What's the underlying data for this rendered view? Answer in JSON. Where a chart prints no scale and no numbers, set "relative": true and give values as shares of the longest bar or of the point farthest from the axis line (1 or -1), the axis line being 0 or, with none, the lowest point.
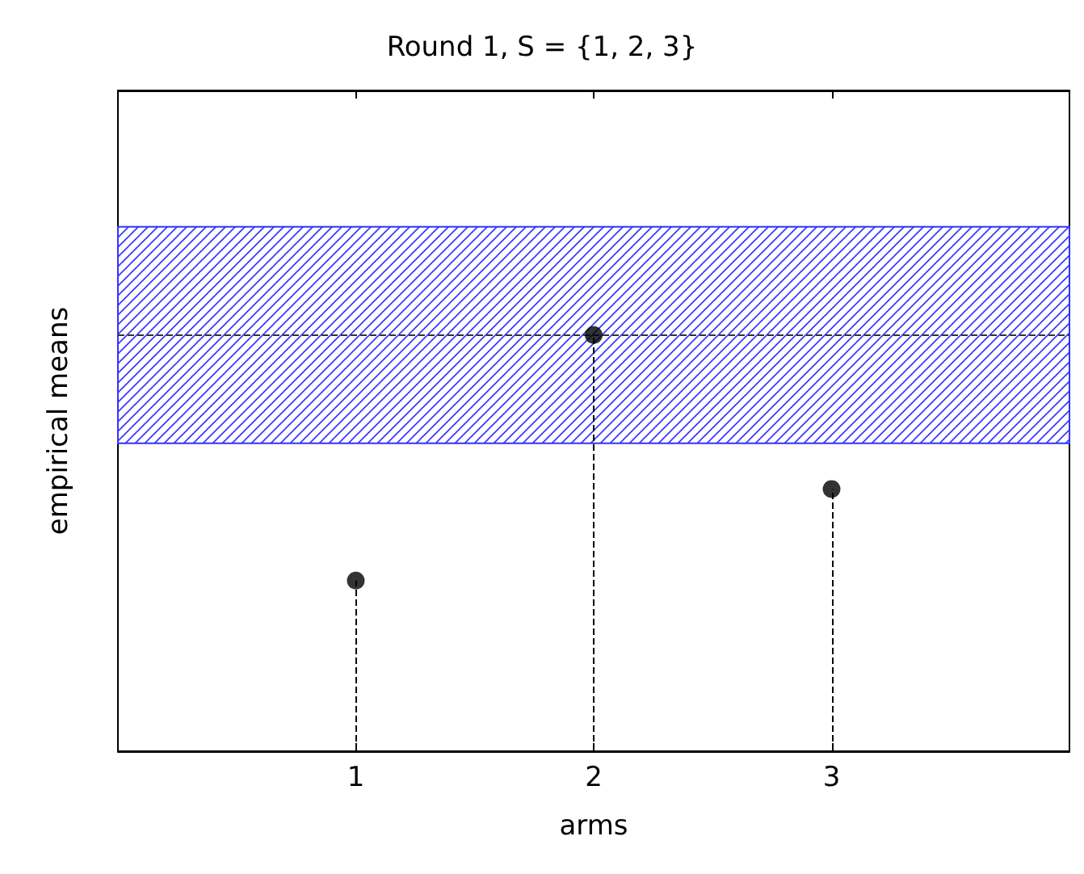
{
  "chart_data": {
    "type": "lollipop",
    "title": "Round 1, S = {1, 2, 3}",
    "xlabel": "arms",
    "ylabel": "empirical means",
    "x": [
      1,
      2,
      3
    ],
    "xlim": [
      0,
      4
    ],
    "xticks": [
      1,
      2,
      3
    ],
    "series": [
      {
        "color": "#000000",
        "values": [
          0.41,
          1.0,
          0.63
        ]
      }
    ],
    "relative": true,
    "marker": "circle",
    "line_style": "dashed",
    "tick_labels": "x",
    "bands": [
      {
        "axis": "y",
        "from": 0.74,
        "to": 1.26,
        "color": "#3333ff"
      }
    ],
    "ref_lines": [
      {
        "axis": "y",
        "value": 1.0,
        "line_style": "dashed",
        "color": "#333333"
      }
    ]
  }
}
